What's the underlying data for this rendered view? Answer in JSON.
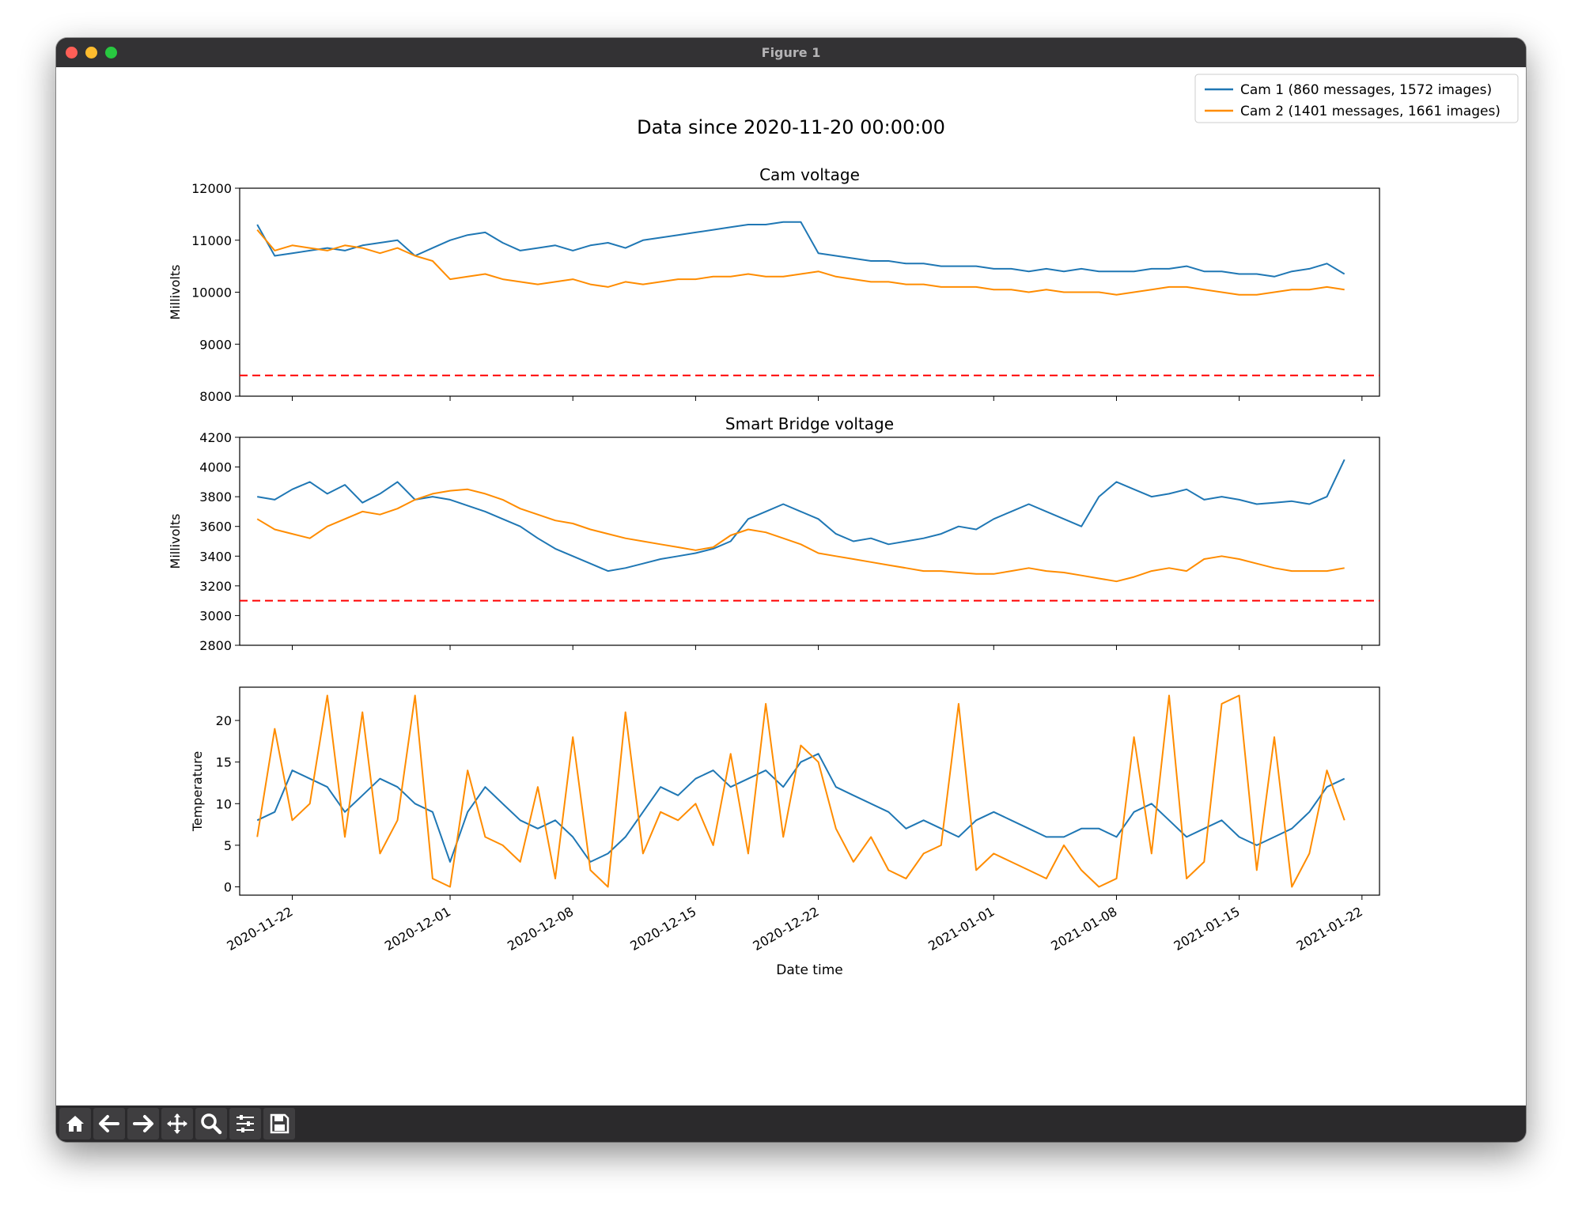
{
  "window": {
    "title": "Figure 1"
  },
  "toolbar": {
    "buttons": [
      "home-icon",
      "back-arrow-icon",
      "forward-arrow-icon",
      "pan-move-icon",
      "zoom-magnifier-icon",
      "configure-subplots-icon",
      "save-disk-icon"
    ]
  },
  "figure": {
    "suptitle": "Data since 2020-11-20 00:00:00",
    "xlabel": "Date time"
  },
  "legend": {
    "entries": [
      "Cam 1 (860 messages, 1572 images)",
      "Cam 2 (1401 messages, 1661 images)"
    ]
  },
  "colors": {
    "cam1": "#1f77b4",
    "cam2": "#ff8c00",
    "threshold": "#ff0000"
  },
  "chart_data": [
    {
      "type": "line",
      "title": "Cam voltage",
      "xlabel": "",
      "ylabel": "Millivolts",
      "ylim": [
        8000,
        12000
      ],
      "yticks": [
        8000,
        9000,
        10000,
        11000,
        12000
      ],
      "xlim": [
        "2020-11-19",
        "2021-01-23"
      ],
      "threshold": {
        "y": 8400,
        "style": "dashed",
        "color": "#ff0000"
      },
      "series": [
        {
          "name": "Cam 1 (860 messages, 1572 images)",
          "color": "#1f77b4",
          "x": [
            "2020-11-20",
            "2020-11-21",
            "2020-11-22",
            "2020-11-23",
            "2020-11-24",
            "2020-11-25",
            "2020-11-26",
            "2020-11-27",
            "2020-11-28",
            "2020-11-29",
            "2020-11-30",
            "2020-12-01",
            "2020-12-02",
            "2020-12-03",
            "2020-12-04",
            "2020-12-05",
            "2020-12-06",
            "2020-12-07",
            "2020-12-08",
            "2020-12-09",
            "2020-12-10",
            "2020-12-11",
            "2020-12-12",
            "2020-12-13",
            "2020-12-14",
            "2020-12-15",
            "2020-12-16",
            "2020-12-17",
            "2020-12-18",
            "2020-12-19",
            "2020-12-20",
            "2020-12-21",
            "2020-12-22",
            "2020-12-23",
            "2020-12-24",
            "2020-12-25",
            "2020-12-26",
            "2020-12-27",
            "2020-12-28",
            "2020-12-29",
            "2020-12-30",
            "2020-12-31",
            "2021-01-01",
            "2021-01-02",
            "2021-01-03",
            "2021-01-04",
            "2021-01-05",
            "2021-01-06",
            "2021-01-07",
            "2021-01-08",
            "2021-01-09",
            "2021-01-10",
            "2021-01-11",
            "2021-01-12",
            "2021-01-13",
            "2021-01-14",
            "2021-01-15",
            "2021-01-16",
            "2021-01-17",
            "2021-01-18",
            "2021-01-19",
            "2021-01-20",
            "2021-01-21"
          ],
          "values": [
            11300,
            10700,
            10750,
            10800,
            10850,
            10800,
            10900,
            10950,
            11000,
            10700,
            10850,
            11000,
            11100,
            11150,
            10950,
            10800,
            10850,
            10900,
            10800,
            10900,
            10950,
            10850,
            11000,
            11050,
            11100,
            11150,
            11200,
            11250,
            11300,
            11300,
            11350,
            11350,
            10750,
            10700,
            10650,
            10600,
            10600,
            10550,
            10550,
            10500,
            10500,
            10500,
            10450,
            10450,
            10400,
            10450,
            10400,
            10450,
            10400,
            10400,
            10400,
            10450,
            10450,
            10500,
            10400,
            10400,
            10350,
            10350,
            10300,
            10400,
            10450,
            10550,
            10350
          ]
        },
        {
          "name": "Cam 2 (1401 messages, 1661 images)",
          "color": "#ff8c00",
          "x": [
            "2020-11-20",
            "2020-11-21",
            "2020-11-22",
            "2020-11-23",
            "2020-11-24",
            "2020-11-25",
            "2020-11-26",
            "2020-11-27",
            "2020-11-28",
            "2020-11-29",
            "2020-11-30",
            "2020-12-01",
            "2020-12-02",
            "2020-12-03",
            "2020-12-04",
            "2020-12-05",
            "2020-12-06",
            "2020-12-07",
            "2020-12-08",
            "2020-12-09",
            "2020-12-10",
            "2020-12-11",
            "2020-12-12",
            "2020-12-13",
            "2020-12-14",
            "2020-12-15",
            "2020-12-16",
            "2020-12-17",
            "2020-12-18",
            "2020-12-19",
            "2020-12-20",
            "2020-12-21",
            "2020-12-22",
            "2020-12-23",
            "2020-12-24",
            "2020-12-25",
            "2020-12-26",
            "2020-12-27",
            "2020-12-28",
            "2020-12-29",
            "2020-12-30",
            "2020-12-31",
            "2021-01-01",
            "2021-01-02",
            "2021-01-03",
            "2021-01-04",
            "2021-01-05",
            "2021-01-06",
            "2021-01-07",
            "2021-01-08",
            "2021-01-09",
            "2021-01-10",
            "2021-01-11",
            "2021-01-12",
            "2021-01-13",
            "2021-01-14",
            "2021-01-15",
            "2021-01-16",
            "2021-01-17",
            "2021-01-18",
            "2021-01-19",
            "2021-01-20",
            "2021-01-21"
          ],
          "values": [
            11200,
            10800,
            10900,
            10850,
            10800,
            10900,
            10850,
            10750,
            10850,
            10700,
            10600,
            10250,
            10300,
            10350,
            10250,
            10200,
            10150,
            10200,
            10250,
            10150,
            10100,
            10200,
            10150,
            10200,
            10250,
            10250,
            10300,
            10300,
            10350,
            10300,
            10300,
            10350,
            10400,
            10300,
            10250,
            10200,
            10200,
            10150,
            10150,
            10100,
            10100,
            10100,
            10050,
            10050,
            10000,
            10050,
            10000,
            10000,
            10000,
            9950,
            10000,
            10050,
            10100,
            10100,
            10050,
            10000,
            9950,
            9950,
            10000,
            10050,
            10050,
            10100,
            10050
          ]
        }
      ]
    },
    {
      "type": "line",
      "title": "Smart Bridge voltage",
      "xlabel": "",
      "ylabel": "Millivolts",
      "ylim": [
        2800,
        4200
      ],
      "yticks": [
        2800,
        3000,
        3200,
        3400,
        3600,
        3800,
        4000,
        4200
      ],
      "xlim": [
        "2020-11-19",
        "2021-01-23"
      ],
      "threshold": {
        "y": 3100,
        "style": "dashed",
        "color": "#ff0000"
      },
      "series": [
        {
          "name": "Cam 1 (860 messages, 1572 images)",
          "color": "#1f77b4",
          "x": [
            "2020-11-20",
            "2020-11-21",
            "2020-11-22",
            "2020-11-23",
            "2020-11-24",
            "2020-11-25",
            "2020-11-26",
            "2020-11-27",
            "2020-11-28",
            "2020-11-29",
            "2020-11-30",
            "2020-12-01",
            "2020-12-02",
            "2020-12-03",
            "2020-12-04",
            "2020-12-05",
            "2020-12-06",
            "2020-12-07",
            "2020-12-08",
            "2020-12-09",
            "2020-12-10",
            "2020-12-11",
            "2020-12-12",
            "2020-12-13",
            "2020-12-14",
            "2020-12-15",
            "2020-12-16",
            "2020-12-17",
            "2020-12-18",
            "2020-12-19",
            "2020-12-20",
            "2020-12-21",
            "2020-12-22",
            "2020-12-23",
            "2020-12-24",
            "2020-12-25",
            "2020-12-26",
            "2020-12-27",
            "2020-12-28",
            "2020-12-29",
            "2020-12-30",
            "2020-12-31",
            "2021-01-01",
            "2021-01-02",
            "2021-01-03",
            "2021-01-04",
            "2021-01-05",
            "2021-01-06",
            "2021-01-07",
            "2021-01-08",
            "2021-01-09",
            "2021-01-10",
            "2021-01-11",
            "2021-01-12",
            "2021-01-13",
            "2021-01-14",
            "2021-01-15",
            "2021-01-16",
            "2021-01-17",
            "2021-01-18",
            "2021-01-19",
            "2021-01-20",
            "2021-01-21"
          ],
          "values": [
            3800,
            3780,
            3850,
            3900,
            3820,
            3880,
            3760,
            3820,
            3900,
            3780,
            3800,
            3780,
            3740,
            3700,
            3650,
            3600,
            3520,
            3450,
            3400,
            3350,
            3300,
            3320,
            3350,
            3380,
            3400,
            3420,
            3450,
            3500,
            3650,
            3700,
            3750,
            3700,
            3650,
            3550,
            3500,
            3520,
            3480,
            3500,
            3520,
            3550,
            3600,
            3580,
            3650,
            3700,
            3750,
            3700,
            3650,
            3600,
            3800,
            3900,
            3850,
            3800,
            3820,
            3850,
            3780,
            3800,
            3780,
            3750,
            3760,
            3770,
            3750,
            3800,
            4050
          ]
        },
        {
          "name": "Cam 2 (1401 messages, 1661 images)",
          "color": "#ff8c00",
          "x": [
            "2020-11-20",
            "2020-11-21",
            "2020-11-22",
            "2020-11-23",
            "2020-11-24",
            "2020-11-25",
            "2020-11-26",
            "2020-11-27",
            "2020-11-28",
            "2020-11-29",
            "2020-11-30",
            "2020-12-01",
            "2020-12-02",
            "2020-12-03",
            "2020-12-04",
            "2020-12-05",
            "2020-12-06",
            "2020-12-07",
            "2020-12-08",
            "2020-12-09",
            "2020-12-10",
            "2020-12-11",
            "2020-12-12",
            "2020-12-13",
            "2020-12-14",
            "2020-12-15",
            "2020-12-16",
            "2020-12-17",
            "2020-12-18",
            "2020-12-19",
            "2020-12-20",
            "2020-12-21",
            "2020-12-22",
            "2020-12-23",
            "2020-12-24",
            "2020-12-25",
            "2020-12-26",
            "2020-12-27",
            "2020-12-28",
            "2020-12-29",
            "2020-12-30",
            "2020-12-31",
            "2021-01-01",
            "2021-01-02",
            "2021-01-03",
            "2021-01-04",
            "2021-01-05",
            "2021-01-06",
            "2021-01-07",
            "2021-01-08",
            "2021-01-09",
            "2021-01-10",
            "2021-01-11",
            "2021-01-12",
            "2021-01-13",
            "2021-01-14",
            "2021-01-15",
            "2021-01-16",
            "2021-01-17",
            "2021-01-18",
            "2021-01-19",
            "2021-01-20",
            "2021-01-21"
          ],
          "values": [
            3650,
            3580,
            3550,
            3520,
            3600,
            3650,
            3700,
            3680,
            3720,
            3780,
            3820,
            3840,
            3850,
            3820,
            3780,
            3720,
            3680,
            3640,
            3620,
            3580,
            3550,
            3520,
            3500,
            3480,
            3460,
            3440,
            3460,
            3540,
            3580,
            3560,
            3520,
            3480,
            3420,
            3400,
            3380,
            3360,
            3340,
            3320,
            3300,
            3300,
            3290,
            3280,
            3280,
            3300,
            3320,
            3300,
            3290,
            3270,
            3250,
            3230,
            3260,
            3300,
            3320,
            3300,
            3380,
            3400,
            3380,
            3350,
            3320,
            3300,
            3300,
            3300,
            3320
          ]
        }
      ]
    },
    {
      "type": "line",
      "title": "",
      "xlabel": "Date time",
      "ylabel": "Temperature",
      "ylim": [
        -1,
        24
      ],
      "yticks": [
        0,
        5,
        10,
        15,
        20
      ],
      "xlim": [
        "2020-11-19",
        "2021-01-23"
      ],
      "xticks": [
        "2020-11-22",
        "2020-12-01",
        "2020-12-08",
        "2020-12-15",
        "2020-12-22",
        "2021-01-01",
        "2021-01-08",
        "2021-01-15",
        "2021-01-22"
      ],
      "series": [
        {
          "name": "Cam 1 (860 messages, 1572 images)",
          "color": "#1f77b4",
          "x": [
            "2020-11-20",
            "2020-11-21",
            "2020-11-22",
            "2020-11-23",
            "2020-11-24",
            "2020-11-25",
            "2020-11-26",
            "2020-11-27",
            "2020-11-28",
            "2020-11-29",
            "2020-11-30",
            "2020-12-01",
            "2020-12-02",
            "2020-12-03",
            "2020-12-04",
            "2020-12-05",
            "2020-12-06",
            "2020-12-07",
            "2020-12-08",
            "2020-12-09",
            "2020-12-10",
            "2020-12-11",
            "2020-12-12",
            "2020-12-13",
            "2020-12-14",
            "2020-12-15",
            "2020-12-16",
            "2020-12-17",
            "2020-12-18",
            "2020-12-19",
            "2020-12-20",
            "2020-12-21",
            "2020-12-22",
            "2020-12-23",
            "2020-12-24",
            "2020-12-25",
            "2020-12-26",
            "2020-12-27",
            "2020-12-28",
            "2020-12-29",
            "2020-12-30",
            "2020-12-31",
            "2021-01-01",
            "2021-01-02",
            "2021-01-03",
            "2021-01-04",
            "2021-01-05",
            "2021-01-06",
            "2021-01-07",
            "2021-01-08",
            "2021-01-09",
            "2021-01-10",
            "2021-01-11",
            "2021-01-12",
            "2021-01-13",
            "2021-01-14",
            "2021-01-15",
            "2021-01-16",
            "2021-01-17",
            "2021-01-18",
            "2021-01-19",
            "2021-01-20",
            "2021-01-21"
          ],
          "values": [
            8,
            9,
            14,
            13,
            12,
            9,
            11,
            13,
            12,
            10,
            9,
            3,
            9,
            12,
            10,
            8,
            7,
            8,
            6,
            3,
            4,
            6,
            9,
            12,
            11,
            13,
            14,
            12,
            13,
            14,
            12,
            15,
            16,
            12,
            11,
            10,
            9,
            7,
            8,
            7,
            6,
            8,
            9,
            8,
            7,
            6,
            6,
            7,
            7,
            6,
            9,
            10,
            8,
            6,
            7,
            8,
            6,
            5,
            6,
            7,
            9,
            12,
            13
          ]
        },
        {
          "name": "Cam 2 (1401 messages, 1661 images)",
          "color": "#ff8c00",
          "x": [
            "2020-11-20",
            "2020-11-21",
            "2020-11-22",
            "2020-11-23",
            "2020-11-24",
            "2020-11-25",
            "2020-11-26",
            "2020-11-27",
            "2020-11-28",
            "2020-11-29",
            "2020-11-30",
            "2020-12-01",
            "2020-12-02",
            "2020-12-03",
            "2020-12-04",
            "2020-12-05",
            "2020-12-06",
            "2020-12-07",
            "2020-12-08",
            "2020-12-09",
            "2020-12-10",
            "2020-12-11",
            "2020-12-12",
            "2020-12-13",
            "2020-12-14",
            "2020-12-15",
            "2020-12-16",
            "2020-12-17",
            "2020-12-18",
            "2020-12-19",
            "2020-12-20",
            "2020-12-21",
            "2020-12-22",
            "2020-12-23",
            "2020-12-24",
            "2020-12-25",
            "2020-12-26",
            "2020-12-27",
            "2020-12-28",
            "2020-12-29",
            "2020-12-30",
            "2020-12-31",
            "2021-01-01",
            "2021-01-02",
            "2021-01-03",
            "2021-01-04",
            "2021-01-05",
            "2021-01-06",
            "2021-01-07",
            "2021-01-08",
            "2021-01-09",
            "2021-01-10",
            "2021-01-11",
            "2021-01-12",
            "2021-01-13",
            "2021-01-14",
            "2021-01-15",
            "2021-01-16",
            "2021-01-17",
            "2021-01-18",
            "2021-01-19",
            "2021-01-20",
            "2021-01-21"
          ],
          "values": [
            6,
            19,
            8,
            10,
            23,
            6,
            21,
            4,
            8,
            23,
            1,
            0,
            14,
            6,
            5,
            3,
            12,
            1,
            18,
            2,
            0,
            21,
            4,
            9,
            8,
            10,
            5,
            16,
            4,
            22,
            6,
            17,
            15,
            7,
            3,
            6,
            2,
            1,
            4,
            5,
            22,
            2,
            4,
            3,
            2,
            1,
            5,
            2,
            0,
            1,
            18,
            4,
            23,
            1,
            3,
            22,
            23,
            2,
            18,
            0,
            4,
            14,
            8
          ]
        }
      ]
    }
  ]
}
